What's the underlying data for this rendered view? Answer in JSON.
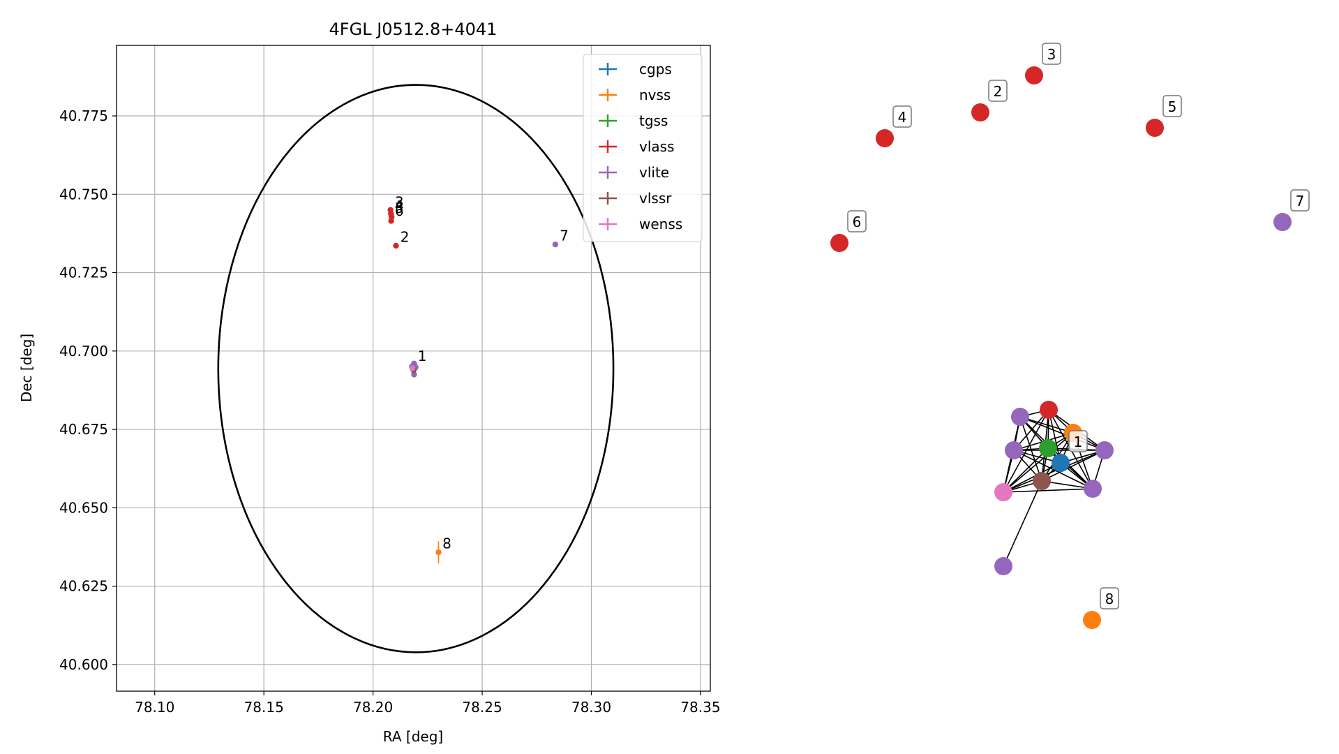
{
  "chart_data": [
    {
      "type": "scatter",
      "title": "4FGL J0512.8+4041",
      "xlabel": "RA [deg]",
      "ylabel": "Dec [deg]",
      "xlim": [
        78.0825,
        78.3545
      ],
      "ylim": [
        40.5915,
        40.7975
      ],
      "xticks": [
        78.1,
        78.15,
        78.2,
        78.25,
        78.3,
        78.35
      ],
      "xtick_labels": [
        "78.10",
        "78.15",
        "78.20",
        "78.25",
        "78.30",
        "78.35"
      ],
      "yticks": [
        40.6,
        40.625,
        40.65,
        40.675,
        40.7,
        40.725,
        40.75,
        40.775
      ],
      "ytick_labels": [
        "40.600",
        "40.625",
        "40.650",
        "40.675",
        "40.700",
        "40.725",
        "40.750",
        "40.775"
      ],
      "grid": true,
      "legend_position": "top-right",
      "error_circle": {
        "ra": 78.2196,
        "dec": 40.6944,
        "radius": 0.0905,
        "color": "#000000"
      },
      "series": [
        {
          "name": "cgps",
          "color": "#1f77b4",
          "points": [
            {
              "ra": 78.2185,
              "dec": 40.6955
            }
          ]
        },
        {
          "name": "nvss",
          "color": "#ff7f0e",
          "points": [
            {
              "ra": 78.219,
              "dec": 40.6955
            },
            {
              "ra": 78.23,
              "dec": 40.6358,
              "yerr": 0.0035
            }
          ]
        },
        {
          "name": "tgss",
          "color": "#2ca02c",
          "points": [
            {
              "ra": 78.2182,
              "dec": 40.6952
            }
          ]
        },
        {
          "name": "vlass",
          "color": "#d62728",
          "points": [
            {
              "ra": 78.2187,
              "dec": 40.695
            },
            {
              "ra": 78.208,
              "dec": 40.745
            },
            {
              "ra": 78.2082,
              "dec": 40.7438
            },
            {
              "ra": 78.2085,
              "dec": 40.7428
            },
            {
              "ra": 78.2083,
              "dec": 40.7415
            },
            {
              "ra": 78.2105,
              "dec": 40.7336
            }
          ]
        },
        {
          "name": "vlite",
          "color": "#9467bd",
          "points": [
            {
              "ra": 78.2188,
              "dec": 40.696
            },
            {
              "ra": 78.2178,
              "dec": 40.695
            },
            {
              "ra": 78.2195,
              "dec": 40.6948
            },
            {
              "ra": 78.2188,
              "dec": 40.6925
            },
            {
              "ra": 78.2835,
              "dec": 40.734
            }
          ]
        },
        {
          "name": "vlssr",
          "color": "#8c564b",
          "points": [
            {
              "ra": 78.2186,
              "dec": 40.6938
            }
          ]
        },
        {
          "name": "wenss",
          "color": "#e377c2",
          "points": [
            {
              "ra": 78.218,
              "dec": 40.6945
            }
          ]
        }
      ],
      "annotations": [
        {
          "text": "1",
          "ra": 78.2205,
          "dec": 40.6968
        },
        {
          "text": "2",
          "ra": 78.2125,
          "dec": 40.7348
        },
        {
          "text": "3",
          "ra": 78.21,
          "dec": 40.746
        },
        {
          "text": "4",
          "ra": 78.21,
          "dec": 40.7448
        },
        {
          "text": "5",
          "ra": 78.21,
          "dec": 40.7441
        },
        {
          "text": "6",
          "ra": 78.21,
          "dec": 40.7432
        },
        {
          "text": "7",
          "ra": 78.2855,
          "dec": 40.7352
        },
        {
          "text": "8",
          "ra": 78.2318,
          "dec": 40.637
        }
      ]
    },
    {
      "type": "network",
      "nodes": [
        {
          "color": "#9467bd"
        },
        {
          "color": "#d62728"
        },
        {
          "color": "#ff7f0e"
        },
        {
          "color": "#9467bd"
        },
        {
          "color": "#2ca02c"
        },
        {
          "color": "#1f77b4"
        },
        {
          "color": "#9467bd"
        },
        {
          "color": "#e377c2"
        },
        {
          "color": "#8c564b"
        },
        {
          "color": "#9467bd"
        },
        {
          "color": "#9467bd"
        },
        {
          "color": "#d62728"
        },
        {
          "color": "#d62728"
        },
        {
          "color": "#d62728"
        },
        {
          "color": "#d62728"
        },
        {
          "color": "#d62728"
        },
        {
          "color": "#9467bd"
        },
        {
          "color": "#ff7f0e"
        }
      ],
      "edges": [
        [
          0,
          1
        ],
        [
          0,
          2
        ],
        [
          0,
          3
        ],
        [
          0,
          4
        ],
        [
          0,
          5
        ],
        [
          0,
          6
        ],
        [
          0,
          7
        ],
        [
          0,
          8
        ],
        [
          0,
          9
        ],
        [
          1,
          2
        ],
        [
          1,
          3
        ],
        [
          1,
          4
        ],
        [
          1,
          5
        ],
        [
          1,
          6
        ],
        [
          1,
          7
        ],
        [
          1,
          8
        ],
        [
          1,
          9
        ],
        [
          2,
          3
        ],
        [
          2,
          4
        ],
        [
          2,
          5
        ],
        [
          2,
          6
        ],
        [
          2,
          7
        ],
        [
          2,
          8
        ],
        [
          2,
          9
        ],
        [
          3,
          4
        ],
        [
          3,
          5
        ],
        [
          3,
          6
        ],
        [
          3,
          7
        ],
        [
          3,
          8
        ],
        [
          3,
          9
        ],
        [
          4,
          5
        ],
        [
          4,
          6
        ],
        [
          4,
          7
        ],
        [
          4,
          8
        ],
        [
          4,
          9
        ],
        [
          5,
          6
        ],
        [
          5,
          7
        ],
        [
          5,
          8
        ],
        [
          5,
          9
        ],
        [
          6,
          7
        ],
        [
          6,
          8
        ],
        [
          6,
          9
        ],
        [
          7,
          8
        ],
        [
          7,
          9
        ],
        [
          8,
          9
        ],
        [
          8,
          10
        ]
      ],
      "labels": [
        {
          "text": "1",
          "node": 5
        },
        {
          "text": "2",
          "node": 12
        },
        {
          "text": "3",
          "node": 13
        },
        {
          "text": "4",
          "node": 11
        },
        {
          "text": "5",
          "node": 14
        },
        {
          "text": "6",
          "node": 15
        },
        {
          "text": "7",
          "node": 16
        },
        {
          "text": "8",
          "node": 17
        }
      ]
    }
  ]
}
